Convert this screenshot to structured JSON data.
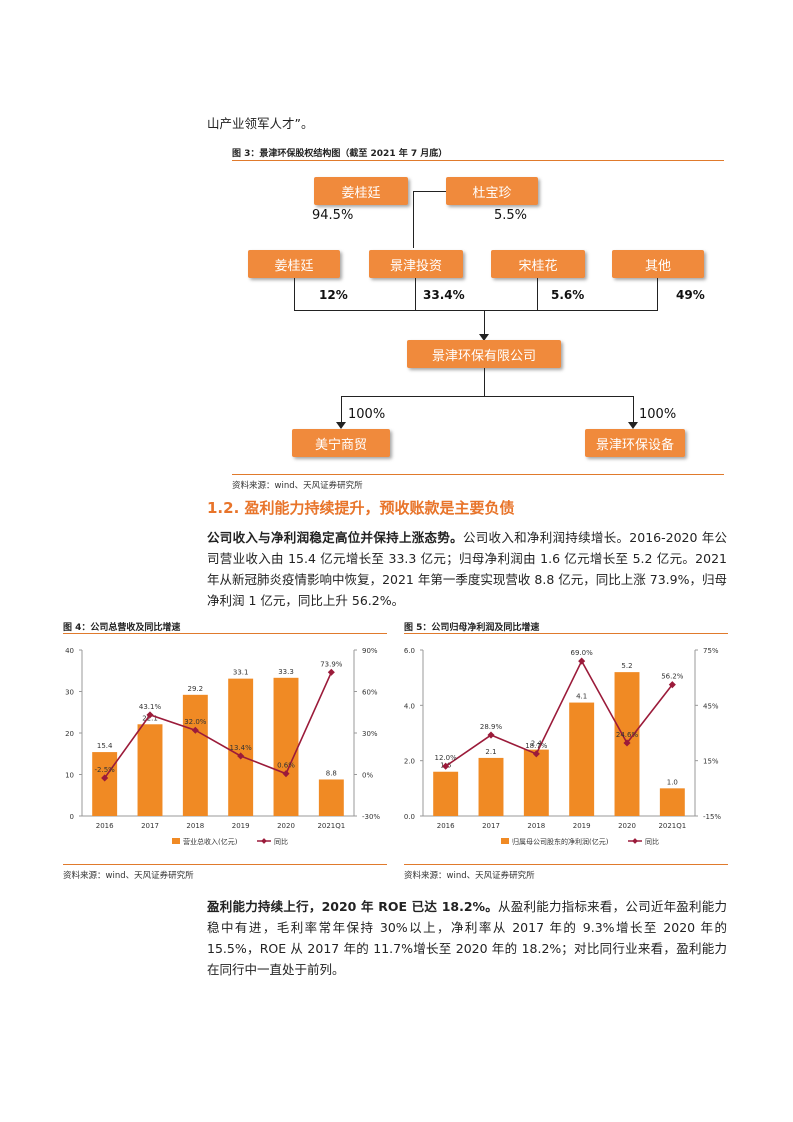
{
  "intro_line": "山产业领军人才”。",
  "fig3": {
    "title": "图 3：景津环保股权结构图（截至 2021 年 7 月底）",
    "boxes": {
      "top_left": "姜桂廷",
      "top_right": "杜宝珍",
      "mid_1": "姜桂廷",
      "mid_2": "景津投资",
      "mid_3": "宋桂花",
      "mid_4": "其他",
      "center": "景津环保有限公司",
      "bottom_left": "美宁商贸",
      "bottom_right": "景津环保设备"
    },
    "pcts": {
      "top_left": "94.5%",
      "top_right": "5.5%",
      "mid_1": "12%",
      "mid_2": "33.4%",
      "mid_3": "5.6%",
      "mid_4": "49%",
      "bottom_left": "100%",
      "bottom_right": "100%"
    },
    "source": "资料来源：wind、天风证券研究所"
  },
  "section": {
    "title": "1.2. 盈利能力持续提升，预收账款是主要负债",
    "p1_bold": "公司收入与净利润稳定高位并保持上涨态势。",
    "p1_text": "公司收入和净利润持续增长。2016-2020 年公司营业收入由 15.4 亿元增长至 33.3 亿元；归母净利润由 1.6 亿元增长至 5.2 亿元。2021 年从新冠肺炎疫情影响中恢复，2021 年第一季度实现营收 8.8 亿元，同比上涨 73.9%，归母净利润 1 亿元，同比上升 56.2%。",
    "p2_bold": "盈利能力持续上行，2020 年 ROE 已达 18.2%。",
    "p2_text": "从盈利能力指标来看，公司近年盈利能力稳中有进，毛利率常年保持 30%以上，净利率从 2017 年的 9.3%增长至 2020 年的 15.5%，ROE 从 2017 年的 11.7%增长至 2020 年的 18.2%；对比同行业来看，盈利能力在同行中一直处于前列。"
  },
  "fig4": {
    "title": "图 4：公司总营收及同比增速",
    "source": "资料来源：wind、天风证券研究所"
  },
  "fig5": {
    "title": "图 5：公司归母净利润及同比增速",
    "source": "资料来源：wind、天风证券研究所"
  },
  "colors": {
    "bar": "#f08a24",
    "line": "#9b1b3a",
    "accent": "#e8742a"
  },
  "chart_data": [
    {
      "type": "bar",
      "categories": [
        "2016",
        "2017",
        "2018",
        "2019",
        "2020",
        "2021Q1"
      ],
      "series": [
        {
          "name": "营业总收入(亿元)",
          "type": "bar",
          "values": [
            15.4,
            22.1,
            29.2,
            33.1,
            33.3,
            8.8
          ],
          "labels": [
            "15.4",
            "22.1",
            "29.2",
            "33.1",
            "33.3",
            "8.8"
          ]
        },
        {
          "name": "同比",
          "type": "line",
          "axis": "right",
          "values": [
            -2.5,
            43.1,
            32.0,
            13.4,
            0.6,
            73.9
          ],
          "labels": [
            "-2.5%",
            "43.1%",
            "32.0%",
            "13.4%",
            "0.6%",
            "73.9%"
          ]
        }
      ],
      "ylim": [
        0,
        40
      ],
      "yticks": [
        "0",
        "10",
        "20",
        "30",
        "40"
      ],
      "y2lim": [
        -30,
        90
      ],
      "y2ticks": [
        "-30%",
        "0%",
        "30%",
        "60%",
        "90%"
      ],
      "legend": "bottom"
    },
    {
      "type": "bar",
      "categories": [
        "2016",
        "2017",
        "2018",
        "2019",
        "2020",
        "2021Q1"
      ],
      "series": [
        {
          "name": "归属母公司股东的净利润(亿元)",
          "type": "bar",
          "values": [
            1.6,
            2.1,
            2.4,
            4.1,
            5.2,
            1.0
          ],
          "labels": [
            "1.6",
            "2.1",
            "2.4",
            "4.1",
            "5.2",
            "1.0"
          ]
        },
        {
          "name": "同比",
          "type": "line",
          "axis": "right",
          "values": [
            12.0,
            28.9,
            18.7,
            69.0,
            24.6,
            56.2
          ],
          "labels": [
            "12.0%",
            "28.9%",
            "18.7%",
            "69.0%",
            "24.6%",
            "56.2%"
          ]
        }
      ],
      "ylim": [
        0,
        6
      ],
      "yticks": [
        "0.0",
        "2.0",
        "4.0",
        "6.0"
      ],
      "y2lim": [
        -15,
        75
      ],
      "y2ticks": [
        "-15%",
        "15%",
        "45%",
        "75%"
      ],
      "legend": "bottom"
    }
  ]
}
